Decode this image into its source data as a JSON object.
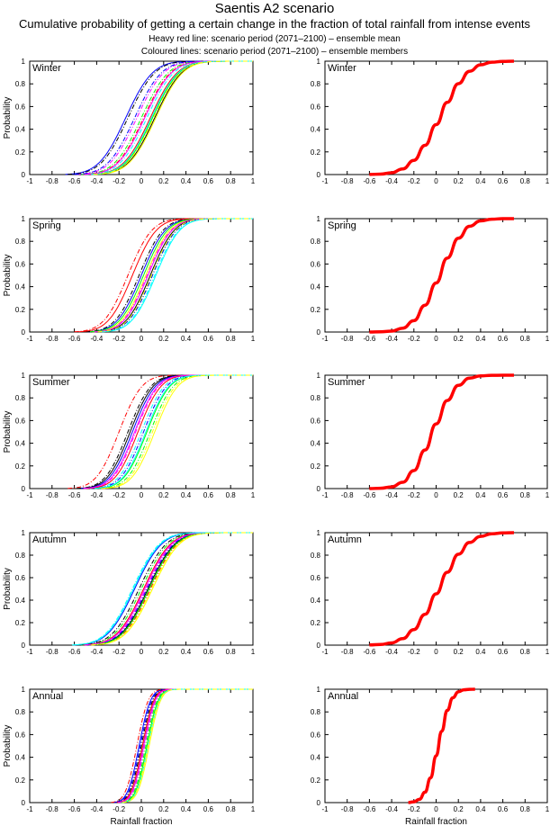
{
  "title": "Saentis A2 scenario",
  "subtitle": "Cumulative probability of getting a certain change in the fraction of total rainfall from intense events",
  "note1": "Heavy red line: scenario period (2071–2100) – ensemble mean",
  "note2": "Coloured lines: scenario period (2071–2100) – ensemble members",
  "chart_data": {
    "type": "line",
    "xlabel": "Rainfall fraction",
    "ylabel": "Probability",
    "xlim": [
      -1,
      1
    ],
    "ylim": [
      0,
      1
    ],
    "xticks": [
      "-1",
      "-0.8",
      "-0.6",
      "-0.4",
      "-0.2",
      "0",
      "0.2",
      "0.4",
      "0.6",
      "0.8",
      "1"
    ],
    "yticks": [
      "0",
      "0.2",
      "0.4",
      "0.6",
      "0.8",
      "1"
    ],
    "mean_color": "#ff0000",
    "member_colors": [
      "#000000",
      "#0000ff",
      "#ff0000",
      "#00ff00",
      "#ff00ff",
      "#00ffff",
      "#ffff00",
      "#000000",
      "#0000ff",
      "#ff0000",
      "#00ff00",
      "#ff00ff",
      "#00ffff",
      "#ffff00"
    ],
    "member_dashed": [
      false,
      false,
      true,
      true,
      true,
      true,
      false,
      true,
      true,
      false,
      false,
      false,
      false,
      true
    ],
    "panels": [
      {
        "season": "Winter",
        "mean": {
          "x": [
            -0.6,
            -0.5,
            -0.4,
            -0.3,
            -0.2,
            -0.1,
            0,
            0.1,
            0.2,
            0.3,
            0.4,
            0.5,
            0.6,
            0.7
          ],
          "y": [
            0.001,
            0.004,
            0.016,
            0.05,
            0.125,
            0.258,
            0.44,
            0.637,
            0.802,
            0.911,
            0.968,
            0.991,
            0.998,
            1.0
          ]
        },
        "member_medians": [
          0.12,
          -0.14,
          0.02,
          0.0,
          -0.04,
          0.05,
          0.13,
          -0.12,
          -0.06,
          0.08,
          0.1,
          0.03,
          0.09,
          0.11
        ],
        "member_sd": 0.19
      },
      {
        "season": "Spring",
        "mean": {
          "x": [
            -0.6,
            -0.5,
            -0.4,
            -0.3,
            -0.2,
            -0.1,
            0,
            0.1,
            0.2,
            0.3,
            0.4,
            0.5,
            0.6,
            0.7
          ],
          "y": [
            0.0,
            0.002,
            0.008,
            0.034,
            0.1,
            0.236,
            0.433,
            0.652,
            0.827,
            0.933,
            0.98,
            0.995,
            1.0,
            1.0
          ]
        },
        "member_medians": [
          0.08,
          0.0,
          -0.12,
          0.1,
          0.05,
          0.12,
          0.04,
          -0.02,
          0.1,
          -0.08,
          0.02,
          0.06,
          0.13,
          0.09
        ],
        "member_sd": 0.17
      },
      {
        "season": "Summer",
        "mean": {
          "x": [
            -0.6,
            -0.5,
            -0.4,
            -0.3,
            -0.2,
            -0.1,
            0,
            0.1,
            0.2,
            0.3,
            0.4,
            0.5,
            0.6,
            0.7
          ],
          "y": [
            0.0,
            0.003,
            0.015,
            0.056,
            0.159,
            0.34,
            0.57,
            0.777,
            0.911,
            0.974,
            0.994,
            0.999,
            1.0,
            1.0
          ]
        },
        "member_medians": [
          -0.1,
          -0.08,
          -0.2,
          0.08,
          -0.05,
          0.0,
          0.12,
          -0.12,
          0.02,
          -0.03,
          0.05,
          -0.06,
          0.04,
          0.1
        ],
        "member_sd": 0.16
      },
      {
        "season": "Autumn",
        "mean": {
          "x": [
            -0.6,
            -0.5,
            -0.4,
            -0.3,
            -0.2,
            -0.1,
            0,
            0.1,
            0.2,
            0.3,
            0.4,
            0.5,
            0.6,
            0.7
          ],
          "y": [
            0.002,
            0.006,
            0.02,
            0.058,
            0.138,
            0.274,
            0.456,
            0.648,
            0.808,
            0.913,
            0.967,
            0.99,
            0.998,
            1.0
          ]
        },
        "member_medians": [
          0.06,
          -0.06,
          0.08,
          0.0,
          0.04,
          -0.08,
          0.1,
          -0.02,
          0.05,
          0.02,
          0.07,
          0.03,
          -0.07,
          0.09
        ],
        "member_sd": 0.19
      },
      {
        "season": "Annual",
        "mean": {
          "x": [
            -0.25,
            -0.2,
            -0.15,
            -0.1,
            -0.05,
            0,
            0.05,
            0.1,
            0.15,
            0.2,
            0.25,
            0.3,
            0.35
          ],
          "y": [
            0.001,
            0.007,
            0.029,
            0.092,
            0.218,
            0.413,
            0.629,
            0.813,
            0.925,
            0.977,
            0.995,
            0.999,
            1.0
          ]
        },
        "member_medians": [
          0.02,
          -0.02,
          -0.04,
          0.04,
          0.03,
          0.05,
          0.07,
          0.0,
          -0.01,
          0.01,
          0.05,
          0.02,
          0.06,
          0.06
        ],
        "member_sd": 0.08
      }
    ]
  }
}
